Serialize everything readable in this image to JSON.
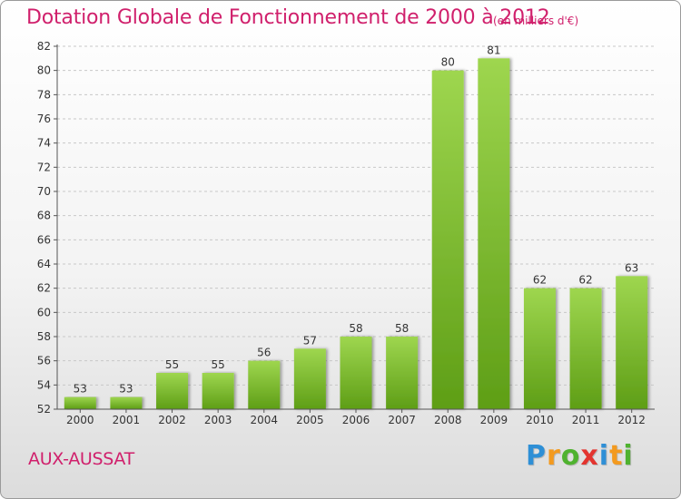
{
  "chart_data": {
    "type": "bar",
    "title": "Dotation Globale de Fonctionnement de 2000 à 2012",
    "subtitle": "(en milliers d'€)",
    "categories": [
      "2000",
      "2001",
      "2002",
      "2003",
      "2004",
      "2005",
      "2006",
      "2007",
      "2008",
      "2009",
      "2010",
      "2011",
      "2012"
    ],
    "values": [
      53,
      53,
      55,
      55,
      56,
      57,
      58,
      58,
      80,
      81,
      62,
      62,
      63
    ],
    "ylim": [
      52,
      82
    ],
    "yticks": [
      52,
      54,
      56,
      58,
      60,
      62,
      64,
      66,
      68,
      70,
      72,
      74,
      76,
      78,
      80,
      82
    ],
    "grid": true,
    "bar_color": "#7cc13a"
  },
  "commune": "AUX-AUSSAT",
  "logo": {
    "letters": [
      "P",
      "r",
      "o",
      "x",
      "i",
      "t",
      "i"
    ],
    "colors": [
      "#2e8fd6",
      "#f39a1f",
      "#4fb22f",
      "#e3342f",
      "#2e8fd6",
      "#f39a1f",
      "#4fb22f"
    ]
  }
}
